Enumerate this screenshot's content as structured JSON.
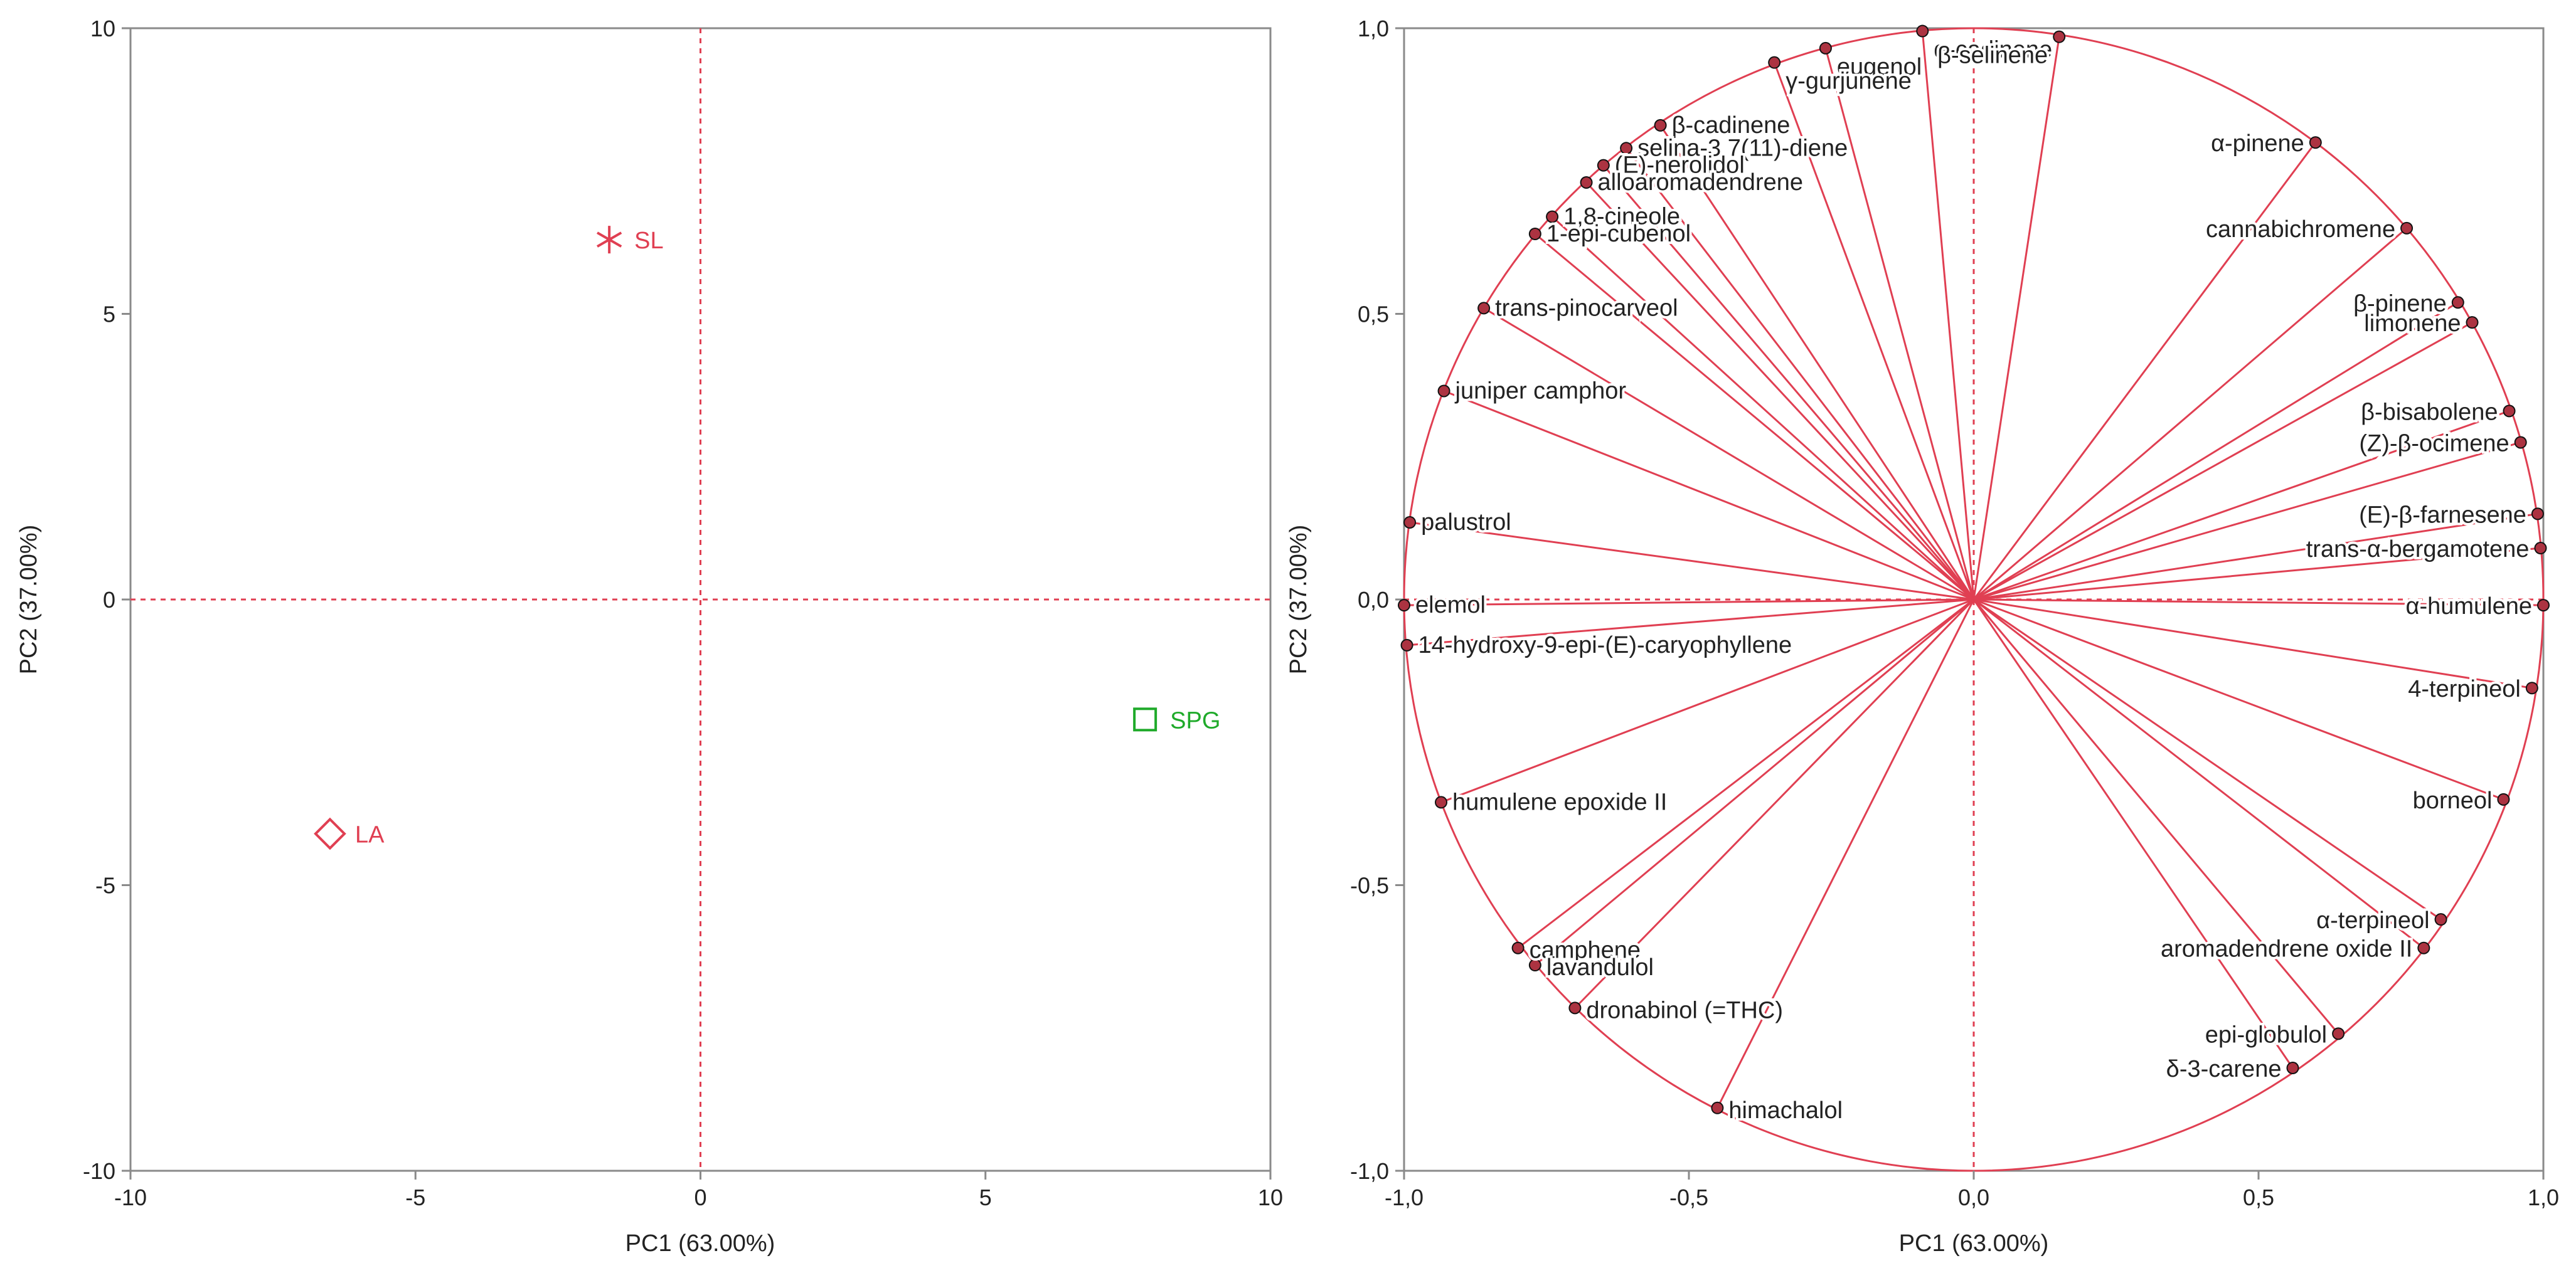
{
  "colors": {
    "accent_red": "#e03f52",
    "group_green": "#1faa2a",
    "axis_gray": "#8a8a8a",
    "text": "#222222",
    "marker_black": "#111111"
  },
  "chart_data": [
    {
      "type": "scatter",
      "title": "",
      "xlabel": "PC1 (63.00%)",
      "ylabel": "PC2 (37.00%)",
      "xlim": [
        -10,
        10
      ],
      "ylim": [
        -10,
        10
      ],
      "xticks": [
        -10,
        -5,
        0,
        5,
        10
      ],
      "yticks": [
        -10,
        -5,
        0,
        5,
        10
      ],
      "xtick_labels": [
        "-10",
        "-5",
        "0",
        "5",
        "10"
      ],
      "ytick_labels": [
        "-10",
        "-5",
        "0",
        "5",
        "10"
      ],
      "points": [
        {
          "label": "SL",
          "x": -1.6,
          "y": 6.3,
          "marker": "asterisk",
          "color": "#e03f52"
        },
        {
          "label": "LA",
          "x": -6.5,
          "y": -4.1,
          "marker": "diamond",
          "color": "#e03f52"
        },
        {
          "label": "SPG",
          "x": 7.8,
          "y": -2.1,
          "marker": "square",
          "color": "#1faa2a"
        }
      ]
    },
    {
      "type": "scatter",
      "subtype": "loading-plot",
      "title": "",
      "xlabel": "PC1 (63.00%)",
      "ylabel": "PC2 (37.00%)",
      "xlim": [
        -1,
        1
      ],
      "ylim": [
        -1,
        1
      ],
      "xticks": [
        -1,
        -0.5,
        0,
        0.5,
        1
      ],
      "yticks": [
        -1,
        -0.5,
        0,
        0.5,
        1
      ],
      "xtick_labels": [
        "-1,0",
        "-0,5",
        "0,0",
        "0,5",
        "1,0"
      ],
      "ytick_labels": [
        "-1,0",
        "-0,5",
        "0,0",
        "0,5",
        "1,0"
      ],
      "variables": [
        {
          "label": "α-cadinene",
          "display": "α-cadinene",
          "x": -0.09,
          "y": 0.995
        },
        {
          "label": "β-selinene",
          "x": 0.15,
          "y": 0.985
        },
        {
          "label": "eugenol",
          "x": -0.26,
          "y": 0.965
        },
        {
          "label": "γ-gurjunene",
          "x": -0.35,
          "y": 0.94
        },
        {
          "label": "β-cadinene",
          "x": -0.55,
          "y": 0.83
        },
        {
          "label": "selina-3,7(11)-diene",
          "x": -0.61,
          "y": 0.79
        },
        {
          "label": "(E)-nerolidol",
          "x": -0.65,
          "y": 0.76
        },
        {
          "label": "alloaromadendrene",
          "x": -0.68,
          "y": 0.73
        },
        {
          "label": "1,8-cineole",
          "x": -0.74,
          "y": 0.67
        },
        {
          "label": "1-epi-cubenol",
          "x": -0.77,
          "y": 0.64
        },
        {
          "label": "trans-pinocarveol",
          "x": -0.86,
          "y": 0.51
        },
        {
          "label": "juniper camphor",
          "x": -0.93,
          "y": 0.365
        },
        {
          "label": "palustrol",
          "x": -0.99,
          "y": 0.135
        },
        {
          "label": "elemol",
          "x": -1.0,
          "y": -0.01
        },
        {
          "label": "14-hydroxy-9-epi-(E)-caryophyllene",
          "x": -0.995,
          "y": -0.08
        },
        {
          "label": "humulene epoxide II",
          "x": -0.935,
          "y": -0.355
        },
        {
          "label": "camphene",
          "x": -0.8,
          "y": -0.61
        },
        {
          "label": "lavandulol",
          "x": -0.77,
          "y": -0.64
        },
        {
          "label": "dronabinol (=THC)",
          "x": -0.7,
          "y": -0.715
        },
        {
          "label": "himachalol",
          "x": -0.45,
          "y": -0.89
        },
        {
          "label": "δ-3-carene",
          "x": 0.56,
          "y": -0.82
        },
        {
          "label": "epi-globulol",
          "x": 0.64,
          "y": -0.76
        },
        {
          "label": "aromadendrene oxide II",
          "x": 0.79,
          "y": -0.61
        },
        {
          "label": "α-terpineol",
          "x": 0.82,
          "y": -0.56
        },
        {
          "label": "borneol",
          "x": 0.93,
          "y": -0.35
        },
        {
          "label": "4-terpineol",
          "x": 0.98,
          "y": -0.155
        },
        {
          "label": "α-humulene",
          "x": 1.0,
          "y": -0.01
        },
        {
          "label": "trans-α-bergamotene",
          "x": 0.995,
          "y": 0.09
        },
        {
          "label": "(E)-β-farnesene",
          "x": 0.99,
          "y": 0.15
        },
        {
          "label": "(Z)-β-ocimene",
          "x": 0.96,
          "y": 0.275
        },
        {
          "label": "β-bisabolene",
          "x": 0.94,
          "y": 0.33
        },
        {
          "label": "limonene",
          "x": 0.875,
          "y": 0.485
        },
        {
          "label": "β-pinene",
          "x": 0.85,
          "y": 0.52
        },
        {
          "label": "cannabichromene",
          "x": 0.76,
          "y": 0.65
        },
        {
          "label": "α-pinene",
          "x": 0.6,
          "y": 0.8
        }
      ]
    }
  ]
}
